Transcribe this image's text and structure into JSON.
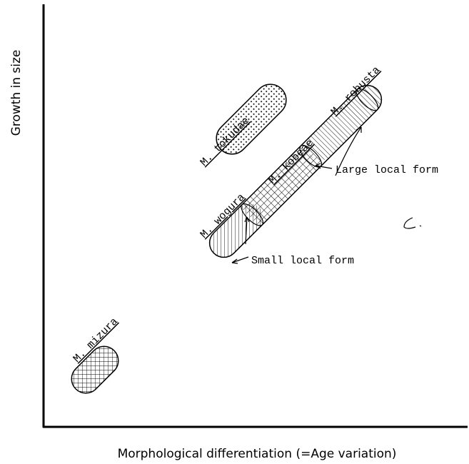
{
  "axes": {
    "x_label": "Morphological differentiation (=Age variation)",
    "y_label": "Growth in size"
  },
  "species": [
    {
      "genus": "M.",
      "name": "mizura"
    },
    {
      "genus": "M.",
      "name": "tokudae"
    },
    {
      "genus": "M.",
      "name": "wogura"
    },
    {
      "genus": "M.",
      "name": "kobeae"
    },
    {
      "genus": "M.",
      "name": "robusta"
    }
  ],
  "annotations": [
    "Small local form",
    "Large local form"
  ]
}
